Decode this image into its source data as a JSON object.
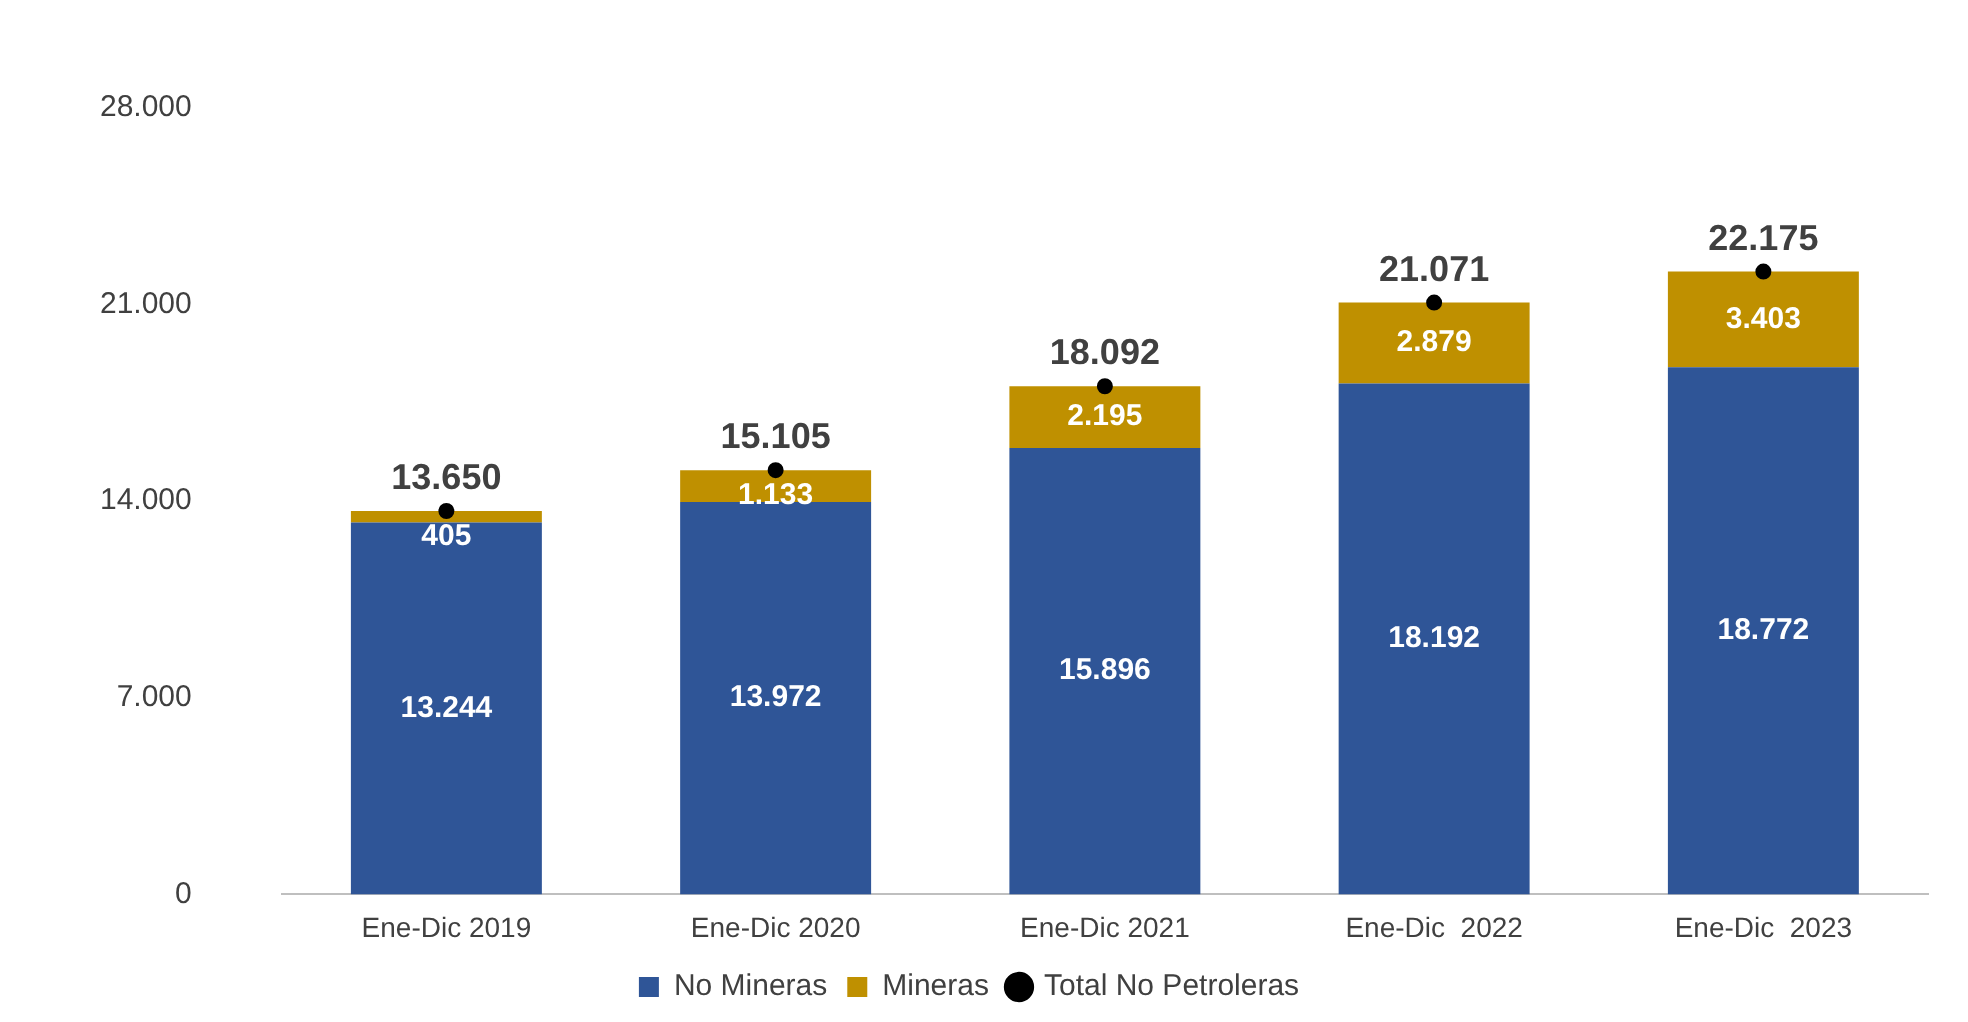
{
  "chart_data": {
    "type": "bar",
    "stacked": true,
    "categories": [
      "Ene-Dic 2019",
      "Ene-Dic 2020",
      "Ene-Dic 2021",
      "Ene-Dic  2022",
      "Ene-Dic  2023"
    ],
    "series": [
      {
        "name": "No Mineras",
        "color": "#2f5597",
        "values": [
          13244,
          13972,
          15896,
          18192,
          18772
        ],
        "value_labels": [
          "13.244",
          "13.972",
          "15.896",
          "18.192",
          "18.772"
        ]
      },
      {
        "name": "Mineras",
        "color": "#bf9000",
        "values": [
          405,
          1133,
          2195,
          2879,
          3403
        ],
        "value_labels": [
          "405",
          "1.133",
          "2.195",
          "2.879",
          "3.403"
        ]
      },
      {
        "name": "Total No Petroleras",
        "type": "scatter",
        "color": "#000000",
        "marker": "circle",
        "x": [
          "Ene-Dic 2019",
          "Ene-Dic 2020",
          "Ene-Dic 2021",
          "Ene-Dic  2022",
          "Ene-Dic  2023"
        ],
        "values": [
          13650,
          15105,
          18092,
          21071,
          22175
        ],
        "value_labels": [
          "13.650",
          "15.105",
          "18.092",
          "21.071",
          "22.175"
        ]
      }
    ],
    "ylim": [
      0,
      28000
    ],
    "yticks": [
      {
        "value": 0,
        "label": "0"
      },
      {
        "value": 7000,
        "label": "7.000"
      },
      {
        "value": 14000,
        "label": "14.000"
      },
      {
        "value": 21000,
        "label": "21.000"
      },
      {
        "value": 28000,
        "label": "28.000"
      }
    ],
    "grid": false,
    "legend": "bottom"
  }
}
